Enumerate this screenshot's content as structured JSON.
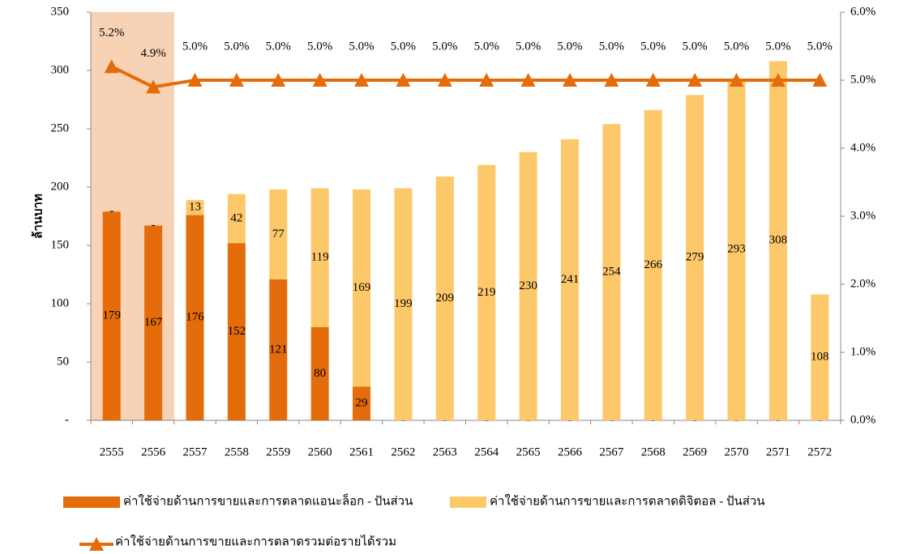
{
  "chart_data": {
    "type": "bar-line",
    "categories": [
      "2555",
      "2556",
      "2557",
      "2558",
      "2559",
      "2560",
      "2561",
      "2562",
      "2563",
      "2564",
      "2565",
      "2566",
      "2567",
      "2568",
      "2569",
      "2570",
      "2571",
      "2572"
    ],
    "ylabel": "ล้านบาท",
    "ylim": [
      0,
      350
    ],
    "yticks": [
      {
        "value": 0,
        "label": "-"
      },
      50,
      100,
      150,
      200,
      250,
      300,
      350
    ],
    "y2lim": [
      0,
      6
    ],
    "y2ticks": [
      {
        "value": 0,
        "label": "0.0%"
      },
      {
        "value": 1,
        "label": "1.0%"
      },
      {
        "value": 2,
        "label": "2.0%"
      },
      {
        "value": 3,
        "label": "3.0%"
      },
      {
        "value": 4,
        "label": "4.0%"
      },
      {
        "value": 5,
        "label": "5.0%"
      },
      {
        "value": 6,
        "label": "6.0%"
      }
    ],
    "stacked": true,
    "series": [
      {
        "name": "ค่าใช้จ่ายด้านการขายและการตลาดแอนะล็อก - ปันส่วน",
        "type": "bar",
        "color": "#e46c0a",
        "values": [
          179,
          167,
          176,
          152,
          121,
          80,
          29,
          0,
          0,
          0,
          0,
          0,
          0,
          0,
          0,
          0,
          0,
          0
        ],
        "value_labels": [
          "179",
          "167",
          "176",
          "152",
          "121",
          "80",
          "29",
          "-",
          "-",
          "-",
          "-",
          "-",
          "-",
          "-",
          "-",
          "-",
          "-",
          "-"
        ]
      },
      {
        "name": "ค่าใช้จ่ายด้านการขายและการตลาดดิจิตอล - ปันส่วน",
        "type": "bar",
        "color": "#fdc86a",
        "values": [
          0,
          0,
          13,
          42,
          77,
          119,
          169,
          199,
          209,
          219,
          230,
          241,
          254,
          266,
          279,
          293,
          308,
          108
        ],
        "value_labels": [
          "-",
          "-",
          "13",
          "42",
          "77",
          "119",
          "169",
          "199",
          "209",
          "219",
          "230",
          "241",
          "254",
          "266",
          "279",
          "293",
          "308",
          "108"
        ]
      },
      {
        "name": "ค่าใช้จ่ายด้านการขายและการตลาดรวมต่อรายได้รวม",
        "type": "line",
        "axis": "y2",
        "color": "#e46c0a",
        "values": [
          5.2,
          4.9,
          5.0,
          5.0,
          5.0,
          5.0,
          5.0,
          5.0,
          5.0,
          5.0,
          5.0,
          5.0,
          5.0,
          5.0,
          5.0,
          5.0,
          5.0,
          5.0
        ],
        "value_labels": [
          "5.2%",
          "4.9%",
          "5.0%",
          "5.0%",
          "5.0%",
          "5.0%",
          "5.0%",
          "5.0%",
          "5.0%",
          "5.0%",
          "5.0%",
          "5.0%",
          "5.0%",
          "5.0%",
          "5.0%",
          "5.0%",
          "5.0%",
          "5.0%"
        ]
      }
    ]
  }
}
